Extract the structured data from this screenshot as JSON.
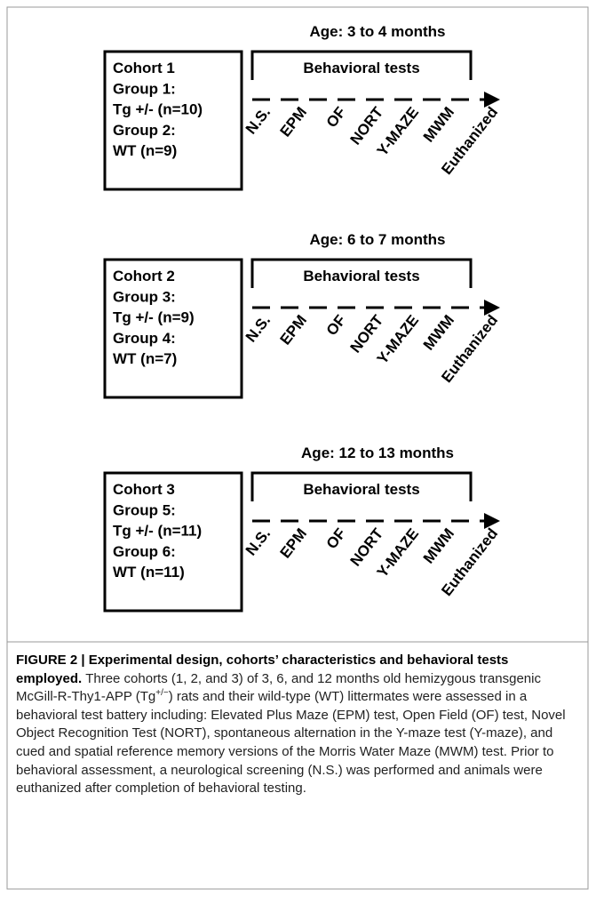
{
  "panels": [
    {
      "age": "Age: 3 to 4 months",
      "cohort_lines": [
        "Cohort 1",
        "Group 1:",
        "Tg +/- (n=10)",
        "Group 2:",
        "WT (n=9)"
      ],
      "bracket_label": "Behavioral tests",
      "tests": [
        "N.S.",
        "EPM",
        "OF",
        "NORT",
        "Y-MAZE",
        "MWM",
        "Euthanized"
      ]
    },
    {
      "age": "Age: 6 to 7 months",
      "cohort_lines": [
        "Cohort 2",
        "Group 3:",
        "Tg +/- (n=9)",
        "Group 4:",
        "WT (n=7)"
      ],
      "bracket_label": "Behavioral tests",
      "tests": [
        "N.S.",
        "EPM",
        "OF",
        "NORT",
        "Y-MAZE",
        "MWM",
        "Euthanized"
      ]
    },
    {
      "age": "Age: 12 to 13 months",
      "cohort_lines": [
        "Cohort 3",
        "Group 5:",
        "Tg +/- (n=11)",
        "Group 6:",
        "WT (n=11)"
      ],
      "bracket_label": "Behavioral tests",
      "tests": [
        "N.S.",
        "EPM",
        "OF",
        "NORT",
        "Y-MAZE",
        "MWM",
        "Euthanized"
      ]
    }
  ],
  "caption": {
    "title": "FIGURE 2 | Experimental design, cohorts’ characteristics and behavioral tests employed.",
    "text_1": "Three cohorts (1, 2, and 3) of 3, 6, and 12 months old hemizygous transgenic McGill-R-Thy1-APP (Tg",
    "superscript": "+/−",
    "text_2": ") rats and their wild-type (WT) littermates were assessed in a behavioral test battery including: Elevated Plus Maze (EPM) test, Open Field (OF) test, Novel Object Recognition Test (NORT), spontaneous alternation in the Y-maze test (Y-maze), and cued and spatial reference memory versions of the Morris Water Maze (MWM) test. Prior to behavioral assessment, a neurological screening (N.S.) was performed and animals were euthanized after completion of behavioral testing."
  }
}
